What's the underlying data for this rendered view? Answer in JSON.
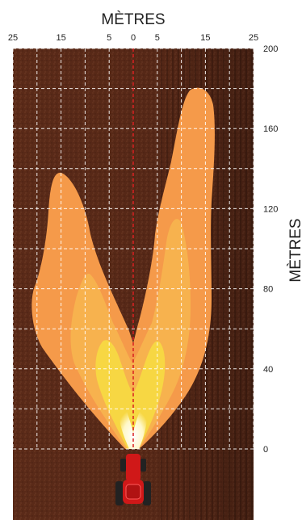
{
  "diagram": {
    "x_axis": {
      "label": "MÈTRES",
      "ticks": [
        {
          "value": -25,
          "label": "25"
        },
        {
          "value": -15,
          "label": "15"
        },
        {
          "value": -5,
          "label": "5"
        },
        {
          "value": 0,
          "label": "0"
        },
        {
          "value": 5,
          "label": "5"
        },
        {
          "value": 15,
          "label": "15"
        },
        {
          "value": 25,
          "label": "25"
        }
      ],
      "range": [
        -25,
        25
      ]
    },
    "y_axis": {
      "label": "MÈTRES",
      "ticks": [
        {
          "value": 200,
          "label": "200"
        },
        {
          "value": 160,
          "label": "160"
        },
        {
          "value": 120,
          "label": "120"
        },
        {
          "value": 80,
          "label": "80"
        },
        {
          "value": 40,
          "label": "40"
        },
        {
          "value": 0,
          "label": "0"
        }
      ],
      "range": [
        0,
        200
      ]
    },
    "colors": {
      "soil": "#5a2a18",
      "soil_dark": "#3a1a0e",
      "grid": "#ffffff",
      "light_outer": "#f59a4a",
      "light_mid": "#f7b24e",
      "light_inner": "#f7d743",
      "light_core": "#fff8c8",
      "center_line": "#d82020",
      "tractor_body": "#d01818",
      "tractor_tire": "#222222"
    },
    "tractor_icon": "tractor-icon"
  }
}
